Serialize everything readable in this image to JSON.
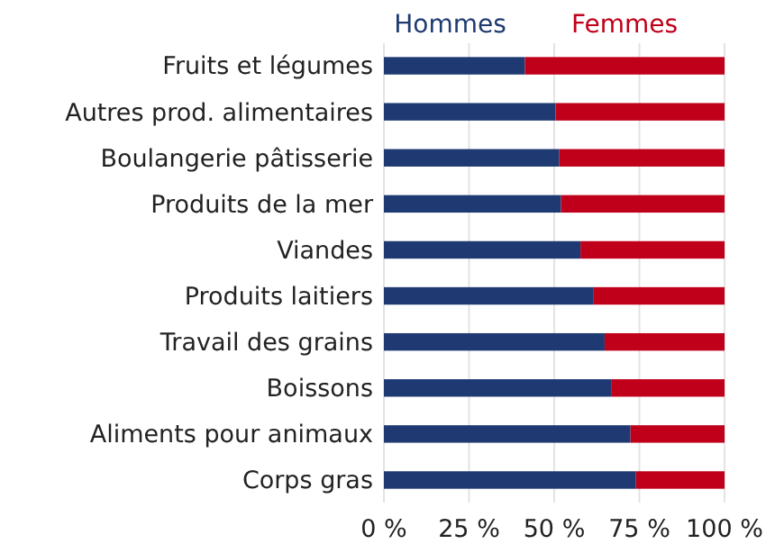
{
  "chart_data": {
    "type": "bar",
    "orientation": "horizontal",
    "stacked": true,
    "categories": [
      "Fruits et légumes",
      "Autres prod. alimentaires",
      "Boulangerie pâtisserie",
      "Produits de la mer",
      "Viandes",
      "Produits laitiers",
      "Travail des grains",
      "Boissons",
      "Aliments pour animaux",
      "Corps gras"
    ],
    "series": [
      {
        "name": "Hommes",
        "color": "#1f3a72",
        "values": [
          41.4,
          50.4,
          51.5,
          52,
          57.7,
          61.6,
          64.8,
          66.7,
          72.4,
          74
        ]
      },
      {
        "name": "Femmes",
        "color": "#c0001b",
        "values": [
          58.6,
          49.6,
          48.5,
          48,
          42.3,
          38.4,
          35.2,
          33.3,
          27.6,
          26
        ]
      }
    ],
    "xlim": [
      0,
      100
    ],
    "xticks": [
      {
        "value": 0,
        "label": "0 %"
      },
      {
        "value": 25,
        "label": "25 %"
      },
      {
        "value": 50,
        "label": "50 %"
      },
      {
        "value": 75,
        "label": "75 %"
      },
      {
        "value": 100,
        "label": "100 %"
      }
    ],
    "grid": "x",
    "legend": "top"
  }
}
